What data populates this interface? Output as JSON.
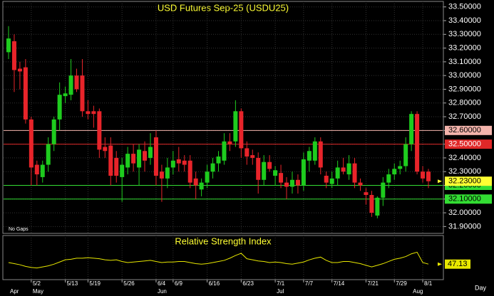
{
  "chart_data": {
    "type": "candlestick",
    "title": "USD Futures Sep-25 (USDU25)",
    "note": "No Gaps",
    "x_unit": "Day",
    "up_color": "#1ecc1e",
    "down_color": "#e8242a",
    "grid": true,
    "ylim": [
      31.85,
      33.54
    ],
    "yticks": [
      {
        "value": 33.5,
        "label": "33.50000"
      },
      {
        "value": 33.4,
        "label": "33.40000"
      },
      {
        "value": 33.3,
        "label": "33.30000"
      },
      {
        "value": 33.2,
        "label": "33.20000"
      },
      {
        "value": 33.1,
        "label": "33.10000"
      },
      {
        "value": 33.0,
        "label": "33.00000"
      },
      {
        "value": 32.9,
        "label": "32.90000"
      },
      {
        "value": 32.8,
        "label": "32.80000"
      },
      {
        "value": 32.7,
        "label": "32.70000"
      },
      {
        "value": 32.6,
        "label": "32.60000"
      },
      {
        "value": 32.5,
        "label": "32.50000"
      },
      {
        "value": 32.4,
        "label": "32.40000"
      },
      {
        "value": 32.3,
        "label": "32.30000"
      },
      {
        "value": 32.2,
        "label": "32.20000"
      },
      {
        "value": 32.1,
        "label": "32.10000"
      },
      {
        "value": 32.0,
        "label": "32.00000"
      },
      {
        "value": 31.9,
        "label": "31.90000"
      }
    ],
    "levels": [
      {
        "value": 32.6,
        "label": "32.60000",
        "color": "#f4b4ac"
      },
      {
        "value": 32.5,
        "label": "32.50000",
        "color": "#e02828"
      },
      {
        "value": 32.2,
        "label": "32.20000",
        "color": "#33dd33"
      },
      {
        "value": 32.1,
        "label": "32.10000",
        "color": "#33dd33"
      }
    ],
    "last_price": {
      "value": 32.23,
      "label": "32.23000",
      "color": "#ffff33"
    },
    "categories": [
      null,
      null,
      null,
      null,
      "5/2",
      null,
      null,
      null,
      null,
      null,
      "5/13",
      null,
      null,
      null,
      "5/19",
      null,
      null,
      null,
      null,
      null,
      "5/26",
      null,
      null,
      null,
      null,
      null,
      "6/4",
      null,
      null,
      "6/9",
      null,
      null,
      null,
      null,
      null,
      "6/16",
      null,
      null,
      null,
      null,
      null,
      "6/23",
      null,
      null,
      null,
      null,
      null,
      "7/1",
      null,
      null,
      null,
      null,
      "7/7",
      null,
      null,
      null,
      null,
      "7/14",
      null,
      null,
      null,
      null,
      null,
      "7/21",
      null,
      null,
      null,
      null,
      "7/29",
      null,
      null,
      null,
      null,
      "8/1",
      null
    ],
    "months": [
      "Apr",
      null,
      null,
      null,
      "May",
      null,
      null,
      null,
      null,
      null,
      null,
      null,
      null,
      null,
      null,
      null,
      null,
      null,
      null,
      null,
      null,
      null,
      null,
      null,
      null,
      null,
      "Jun",
      null,
      null,
      null,
      null,
      null,
      null,
      null,
      null,
      null,
      null,
      null,
      null,
      null,
      null,
      null,
      null,
      null,
      null,
      null,
      null,
      "Jul",
      null,
      null,
      null,
      null,
      null,
      null,
      null,
      null,
      null,
      null,
      null,
      null,
      null,
      null,
      null,
      null,
      null,
      null,
      null,
      null,
      null,
      null,
      null,
      "Aug",
      null
    ],
    "candles": [
      [
        33.17,
        33.36,
        33.12,
        33.27
      ],
      [
        33.25,
        33.3,
        32.88,
        33.04
      ],
      [
        33.05,
        33.1,
        32.9,
        33.03
      ],
      [
        33.06,
        33.12,
        32.65,
        32.68
      ],
      [
        32.68,
        32.7,
        32.2,
        32.33
      ],
      [
        32.35,
        32.38,
        32.2,
        32.28
      ],
      [
        32.26,
        32.38,
        32.22,
        32.35
      ],
      [
        32.35,
        32.55,
        32.3,
        32.5
      ],
      [
        32.5,
        32.7,
        32.45,
        32.68
      ],
      [
        32.68,
        32.95,
        32.6,
        32.86
      ],
      [
        32.85,
        32.92,
        32.8,
        32.87
      ],
      [
        32.86,
        33.12,
        32.82,
        33.0
      ],
      [
        33.0,
        33.05,
        32.88,
        32.9
      ],
      [
        33.0,
        33.12,
        32.7,
        32.74
      ],
      [
        32.74,
        32.82,
        32.68,
        32.72
      ],
      [
        32.74,
        32.78,
        32.62,
        32.72
      ],
      [
        32.74,
        32.76,
        32.4,
        32.46
      ],
      [
        32.48,
        32.55,
        32.4,
        32.45
      ],
      [
        32.49,
        32.55,
        32.2,
        32.27
      ],
      [
        32.4,
        32.45,
        32.22,
        32.27
      ],
      [
        32.26,
        32.4,
        32.08,
        32.35
      ],
      [
        32.33,
        32.48,
        32.28,
        32.43
      ],
      [
        32.43,
        32.5,
        32.3,
        32.36
      ],
      [
        32.33,
        32.5,
        32.2,
        32.46
      ],
      [
        32.45,
        32.52,
        32.3,
        32.38
      ],
      [
        32.4,
        32.58,
        32.35,
        32.48
      ],
      [
        32.55,
        32.6,
        32.2,
        32.27
      ],
      [
        32.3,
        32.35,
        32.08,
        32.25
      ],
      [
        32.25,
        32.4,
        32.18,
        32.33
      ],
      [
        32.33,
        32.45,
        32.28,
        32.38
      ],
      [
        32.39,
        32.48,
        32.3,
        32.36
      ],
      [
        32.38,
        32.42,
        32.3,
        32.35
      ],
      [
        32.38,
        32.42,
        32.18,
        32.22
      ],
      [
        32.25,
        32.3,
        32.1,
        32.2
      ],
      [
        32.17,
        32.25,
        32.12,
        32.22
      ],
      [
        32.22,
        32.35,
        32.18,
        32.3
      ],
      [
        32.3,
        32.4,
        32.25,
        32.36
      ],
      [
        32.36,
        32.45,
        32.3,
        32.41
      ],
      [
        32.38,
        32.58,
        32.35,
        32.52
      ],
      [
        32.52,
        32.58,
        32.45,
        32.5
      ],
      [
        32.52,
        32.82,
        32.48,
        32.74
      ],
      [
        32.74,
        32.76,
        32.4,
        32.47
      ],
      [
        32.47,
        32.52,
        32.35,
        32.41
      ],
      [
        32.42,
        32.46,
        32.35,
        32.4
      ],
      [
        32.4,
        32.44,
        32.14,
        32.24
      ],
      [
        32.24,
        32.42,
        32.2,
        32.37
      ],
      [
        32.37,
        32.42,
        32.3,
        32.32
      ],
      [
        32.27,
        32.34,
        32.2,
        32.31
      ],
      [
        32.29,
        32.35,
        32.18,
        32.22
      ],
      [
        32.22,
        32.26,
        32.1,
        32.19
      ],
      [
        32.19,
        32.3,
        32.14,
        32.24
      ],
      [
        32.24,
        32.28,
        32.14,
        32.2
      ],
      [
        32.2,
        32.44,
        32.16,
        32.39
      ],
      [
        32.38,
        32.48,
        32.3,
        32.45
      ],
      [
        32.38,
        32.55,
        32.35,
        32.52
      ],
      [
        32.52,
        32.55,
        32.28,
        32.33
      ],
      [
        32.27,
        32.3,
        32.18,
        32.22
      ],
      [
        32.21,
        32.3,
        32.18,
        32.25
      ],
      [
        32.25,
        32.38,
        32.2,
        32.33
      ],
      [
        32.33,
        32.4,
        32.28,
        32.3
      ],
      [
        32.28,
        32.42,
        32.24,
        32.36
      ],
      [
        32.36,
        32.4,
        32.18,
        32.22
      ],
      [
        32.22,
        32.25,
        32.16,
        32.2
      ],
      [
        32.15,
        32.18,
        32.06,
        32.13
      ],
      [
        32.13,
        32.16,
        31.97,
        32.0
      ],
      [
        31.98,
        32.12,
        31.96,
        32.11
      ],
      [
        32.11,
        32.26,
        32.05,
        32.22
      ],
      [
        32.22,
        32.32,
        32.18,
        32.28
      ],
      [
        32.28,
        32.36,
        32.24,
        32.32
      ],
      [
        32.32,
        32.38,
        32.28,
        32.34
      ],
      [
        32.34,
        32.55,
        32.3,
        32.5
      ],
      [
        32.5,
        32.74,
        32.45,
        32.72
      ],
      [
        32.72,
        32.74,
        32.28,
        32.3
      ],
      [
        32.3,
        32.34,
        32.22,
        32.25
      ],
      [
        32.3,
        32.32,
        32.18,
        32.23
      ]
    ],
    "rsi": {
      "title": "Relative Strength Index",
      "color": "#e8e800",
      "ylim": [
        20,
        80
      ],
      "values": [
        50,
        48,
        46,
        43,
        41,
        40,
        42,
        44,
        47,
        51,
        55,
        56,
        58,
        58,
        59,
        58,
        57,
        55,
        54,
        55,
        52,
        50,
        51,
        52,
        53,
        54,
        52,
        50,
        51,
        51,
        52,
        52,
        50,
        48,
        47,
        48,
        50,
        52,
        54,
        58,
        63,
        67,
        57,
        55,
        53,
        52,
        50,
        51,
        50,
        48,
        47,
        49,
        51,
        55,
        58,
        60,
        54,
        50,
        50,
        52,
        52,
        50,
        48,
        45,
        42,
        45,
        48,
        52,
        56,
        58,
        61,
        66,
        69,
        50,
        47.13
      ]
    }
  }
}
